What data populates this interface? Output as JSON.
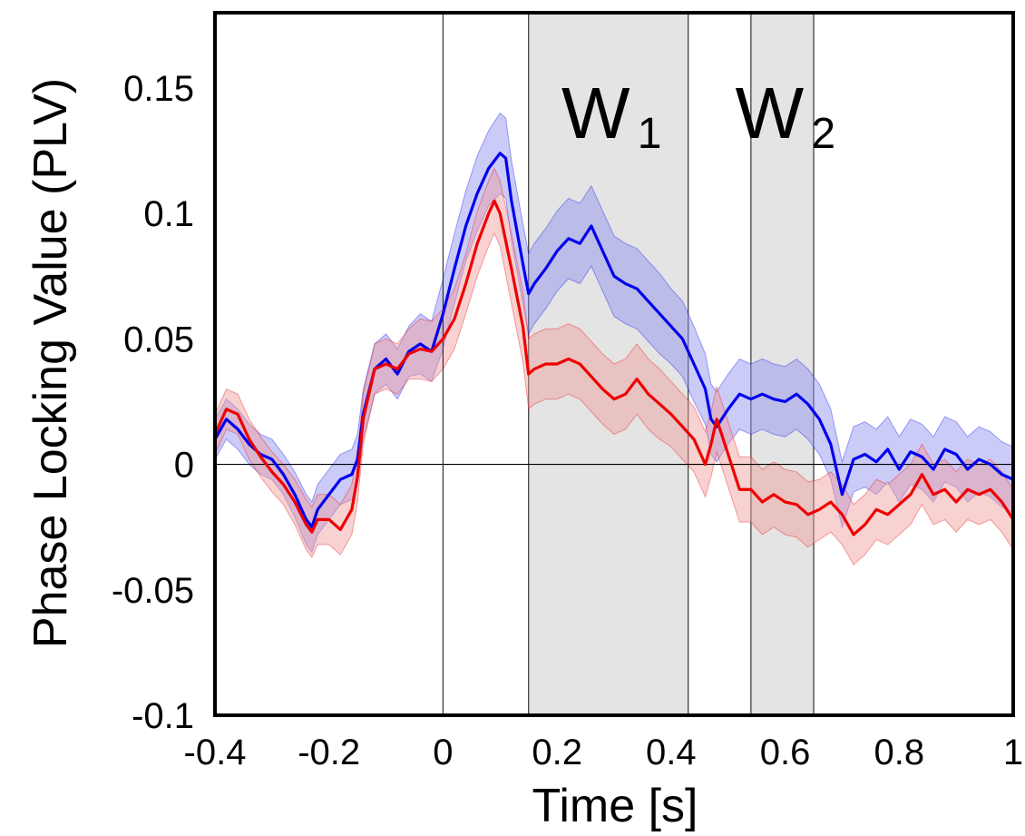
{
  "chart_data": {
    "type": "line",
    "title": "",
    "xlabel": "Time [s]",
    "ylabel": "Phase Locking Value (PLV)",
    "xlim": [
      -0.4,
      1.0
    ],
    "ylim": [
      -0.1,
      0.18
    ],
    "x_ticks": [
      -0.4,
      -0.2,
      0,
      0.2,
      0.4,
      0.6,
      0.8,
      1.0
    ],
    "x_tick_labels": [
      "-0.4",
      "-0.2",
      "0",
      "0.2",
      "0.4",
      "0.6",
      "0.8",
      "1"
    ],
    "y_ticks": [
      -0.1,
      -0.05,
      0,
      0.05,
      0.1,
      0.15
    ],
    "y_tick_labels": [
      "-0.1",
      "-0.05",
      "0",
      "0.05",
      "0.1",
      "0.15"
    ],
    "grid": false,
    "reference_lines": {
      "horizontal_y": 0,
      "vertical_x": 0
    },
    "windows": [
      {
        "label": "W",
        "subscript": "1",
        "start": 0.15,
        "end": 0.43
      },
      {
        "label": "W",
        "subscript": "2",
        "start": 0.54,
        "end": 0.65
      }
    ],
    "series": [
      {
        "color": "#0000ee",
        "band_color": "#8c8cf0",
        "x": [
          -0.4,
          -0.38,
          -0.36,
          -0.34,
          -0.32,
          -0.3,
          -0.28,
          -0.26,
          -0.24,
          -0.23,
          -0.22,
          -0.2,
          -0.18,
          -0.16,
          -0.15,
          -0.14,
          -0.12,
          -0.1,
          -0.08,
          -0.06,
          -0.04,
          -0.02,
          0,
          0.02,
          0.04,
          0.06,
          0.08,
          0.1,
          0.11,
          0.12,
          0.14,
          0.15,
          0.16,
          0.18,
          0.2,
          0.22,
          0.24,
          0.26,
          0.28,
          0.3,
          0.32,
          0.34,
          0.36,
          0.38,
          0.4,
          0.42,
          0.44,
          0.46,
          0.47,
          0.48,
          0.5,
          0.52,
          0.54,
          0.56,
          0.58,
          0.6,
          0.62,
          0.64,
          0.66,
          0.68,
          0.7,
          0.72,
          0.74,
          0.76,
          0.78,
          0.8,
          0.82,
          0.84,
          0.86,
          0.88,
          0.9,
          0.92,
          0.94,
          0.96,
          0.98,
          1.0
        ],
        "values": [
          0.01,
          0.018,
          0.014,
          0.008,
          0.004,
          0.002,
          -0.004,
          -0.012,
          -0.022,
          -0.025,
          -0.018,
          -0.012,
          -0.006,
          -0.004,
          0.002,
          0.02,
          0.038,
          0.042,
          0.036,
          0.045,
          0.048,
          0.045,
          0.06,
          0.078,
          0.095,
          0.108,
          0.118,
          0.124,
          0.122,
          0.105,
          0.08,
          0.068,
          0.072,
          0.078,
          0.085,
          0.09,
          0.088,
          0.095,
          0.085,
          0.075,
          0.072,
          0.07,
          0.065,
          0.06,
          0.055,
          0.05,
          0.04,
          0.03,
          0.018,
          0.015,
          0.022,
          0.028,
          0.026,
          0.028,
          0.026,
          0.025,
          0.028,
          0.024,
          0.018,
          0.008,
          -0.012,
          0.002,
          0.004,
          0.001,
          0.006,
          -0.002,
          0.005,
          0.003,
          -0.002,
          0.006,
          0.004,
          -0.002,
          0.002,
          0.0,
          -0.004,
          -0.006
        ],
        "band_halfwidth": [
          0.008,
          0.008,
          0.008,
          0.008,
          0.008,
          0.008,
          0.008,
          0.009,
          0.01,
          0.01,
          0.01,
          0.01,
          0.01,
          0.01,
          0.01,
          0.01,
          0.01,
          0.01,
          0.01,
          0.01,
          0.012,
          0.012,
          0.014,
          0.014,
          0.014,
          0.015,
          0.015,
          0.016,
          0.016,
          0.016,
          0.016,
          0.016,
          0.016,
          0.016,
          0.016,
          0.016,
          0.016,
          0.016,
          0.016,
          0.016,
          0.016,
          0.016,
          0.016,
          0.016,
          0.015,
          0.015,
          0.015,
          0.014,
          0.014,
          0.014,
          0.014,
          0.014,
          0.014,
          0.014,
          0.014,
          0.014,
          0.014,
          0.014,
          0.014,
          0.014,
          0.013,
          0.013,
          0.013,
          0.013,
          0.013,
          0.013,
          0.013,
          0.013,
          0.013,
          0.013,
          0.013,
          0.013,
          0.013,
          0.013,
          0.013,
          0.013
        ]
      },
      {
        "color": "#ee0000",
        "band_color": "#f09a9a",
        "x": [
          -0.4,
          -0.38,
          -0.36,
          -0.34,
          -0.32,
          -0.3,
          -0.28,
          -0.26,
          -0.24,
          -0.23,
          -0.22,
          -0.2,
          -0.18,
          -0.16,
          -0.15,
          -0.14,
          -0.12,
          -0.1,
          -0.08,
          -0.06,
          -0.04,
          -0.02,
          0,
          0.02,
          0.04,
          0.06,
          0.08,
          0.09,
          0.1,
          0.12,
          0.14,
          0.15,
          0.16,
          0.18,
          0.2,
          0.22,
          0.24,
          0.26,
          0.28,
          0.3,
          0.32,
          0.34,
          0.36,
          0.38,
          0.4,
          0.42,
          0.44,
          0.46,
          0.47,
          0.48,
          0.5,
          0.52,
          0.54,
          0.56,
          0.58,
          0.6,
          0.62,
          0.64,
          0.66,
          0.68,
          0.7,
          0.72,
          0.74,
          0.76,
          0.78,
          0.8,
          0.82,
          0.84,
          0.86,
          0.88,
          0.9,
          0.92,
          0.94,
          0.96,
          0.98,
          1.0
        ],
        "values": [
          0.012,
          0.022,
          0.02,
          0.01,
          0.003,
          -0.003,
          -0.008,
          -0.015,
          -0.024,
          -0.027,
          -0.022,
          -0.022,
          -0.026,
          -0.018,
          -0.005,
          0.018,
          0.038,
          0.04,
          0.038,
          0.044,
          0.046,
          0.045,
          0.05,
          0.058,
          0.072,
          0.088,
          0.1,
          0.105,
          0.1,
          0.078,
          0.055,
          0.036,
          0.038,
          0.04,
          0.04,
          0.042,
          0.04,
          0.035,
          0.03,
          0.026,
          0.028,
          0.034,
          0.028,
          0.024,
          0.02,
          0.015,
          0.01,
          0.0,
          0.008,
          0.018,
          0.004,
          -0.01,
          -0.01,
          -0.015,
          -0.012,
          -0.015,
          -0.016,
          -0.02,
          -0.018,
          -0.015,
          -0.02,
          -0.028,
          -0.024,
          -0.018,
          -0.02,
          -0.016,
          -0.012,
          -0.004,
          -0.012,
          -0.01,
          -0.015,
          -0.01,
          -0.012,
          -0.01,
          -0.015,
          -0.022
        ],
        "band_halfwidth": [
          0.008,
          0.008,
          0.008,
          0.008,
          0.008,
          0.008,
          0.008,
          0.009,
          0.01,
          0.01,
          0.01,
          0.01,
          0.01,
          0.01,
          0.01,
          0.01,
          0.01,
          0.01,
          0.01,
          0.01,
          0.012,
          0.012,
          0.012,
          0.012,
          0.012,
          0.013,
          0.013,
          0.013,
          0.013,
          0.014,
          0.014,
          0.014,
          0.014,
          0.014,
          0.014,
          0.014,
          0.014,
          0.014,
          0.014,
          0.014,
          0.014,
          0.014,
          0.014,
          0.014,
          0.013,
          0.013,
          0.013,
          0.013,
          0.013,
          0.013,
          0.013,
          0.013,
          0.013,
          0.013,
          0.013,
          0.013,
          0.013,
          0.013,
          0.012,
          0.012,
          0.012,
          0.012,
          0.012,
          0.012,
          0.012,
          0.012,
          0.012,
          0.012,
          0.012,
          0.012,
          0.012,
          0.012,
          0.012,
          0.012,
          0.012,
          0.012
        ]
      }
    ]
  }
}
